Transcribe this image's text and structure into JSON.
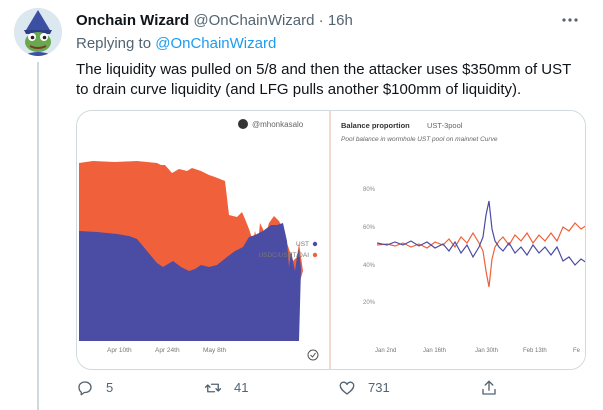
{
  "author": {
    "name": "Onchain Wizard",
    "handle": "@OnChainWizard",
    "separator": "·",
    "time": "16h"
  },
  "replying": {
    "prefix": "Replying to",
    "handle": "@OnChainWizard"
  },
  "tweet_text": "The liquidity was pulled on 5/8 and then the attacker uses $350mm of UST to drain curve liquidity (and LFG pulls another $100mm of liquidity).",
  "media": {
    "left_chart": {
      "credit": "@mhonkasalo",
      "legend": [
        "UST",
        "USDC/USDT/DAI"
      ],
      "x_ticks": [
        "Apr 10th",
        "Apr 24th",
        "May 8th"
      ],
      "colors": {
        "ust": "#4b4ca3",
        "stables": "#f0603a"
      }
    },
    "right_chart": {
      "title": "Balance proportion",
      "pool": "UST-3pool",
      "subtitle": "Pool balance in wormhole UST pool on mainnet Curve",
      "y_ticks": [
        "80%",
        "60%",
        "40%",
        "20%"
      ],
      "x_ticks": [
        "Jan 2nd",
        "Jan 16th",
        "Jan 30th",
        "Feb 13th",
        "Fe"
      ],
      "colors": {
        "ust": "#4b4ca3",
        "stables": "#f0603a"
      }
    }
  },
  "actions": {
    "replies": "5",
    "retweets": "41",
    "likes": "731"
  },
  "icons": {
    "more": "more-icon",
    "reply": "reply-icon",
    "retweet": "retweet-icon",
    "like": "heart-icon",
    "share": "share-icon",
    "badge": "check-circle-icon"
  },
  "colors": {
    "link": "#1d9bf0",
    "muted": "#536471"
  }
}
